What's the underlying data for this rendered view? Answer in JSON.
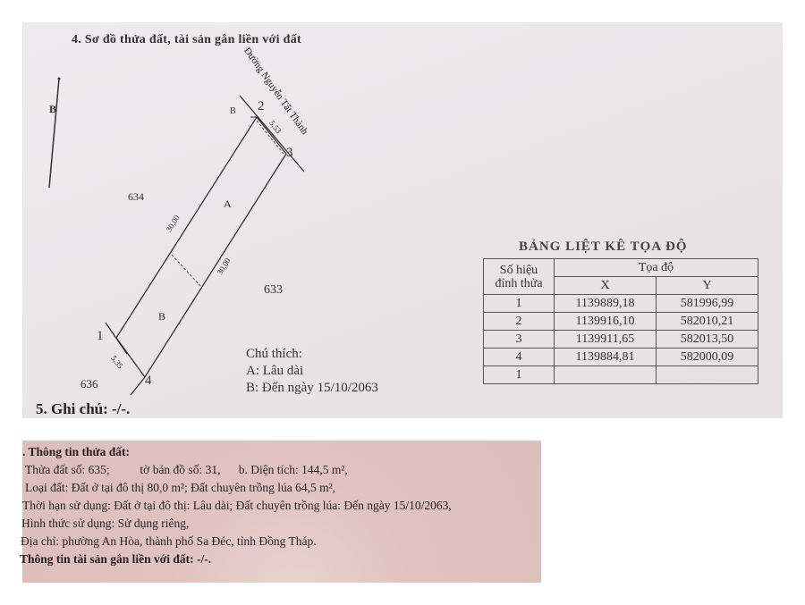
{
  "diagram": {
    "section_title": "4. Sơ đồ thửa đất, tài sản gắn liền với đất",
    "north_label": "B",
    "road_name": "Đường Nguyễn Tất Thành",
    "road_marker": "B",
    "points": [
      "1",
      "2",
      "3",
      "4"
    ],
    "dimensions": {
      "top": "5,53",
      "left": "30,00",
      "right": "30,00",
      "bottom": "5,35"
    },
    "zones": [
      "A",
      "B"
    ],
    "neighbors": {
      "left": "634",
      "right": "633",
      "bottom": "636"
    },
    "legend": {
      "title": "Chú thích:",
      "a": "A: Lâu dài",
      "b": "B: Đến ngày 15/10/2063"
    },
    "note": "5. Ghi chú: -/-."
  },
  "coord_table": {
    "title": "BẢNG LIỆT KÊ TỌA ĐỘ",
    "header_point": "Số hiệu đỉnh thửa",
    "header_coord": "Tọa độ",
    "col_x": "X",
    "col_y": "Y",
    "rows": [
      {
        "p": "1",
        "x": "1139889,18",
        "y": "581996,99"
      },
      {
        "p": "2",
        "x": "1139916,10",
        "y": "582010,21"
      },
      {
        "p": "3",
        "x": "1139911,65",
        "y": "582013,50"
      },
      {
        "p": "4",
        "x": "1139884,81",
        "y": "582000,09"
      },
      {
        "p": "1",
        "x": "",
        "y": ""
      }
    ]
  },
  "info": {
    "heading": ". Thông tin thửa đất:",
    "line1": "Thửa đất số: 635;          tờ bản đồ số: 31,      b. Diện tích: 144,5 m²,",
    "line2": "Loại đất: Đất ở tại đô thị 80,0 m²; Đất chuyên trồng lúa 64,5 m²,",
    "line3": "Thời hạn sử dụng: Đất ở tại đô thị: Lâu dài; Đất chuyên trồng lúa: Đến ngày 15/10/2063,",
    "line4": "Hình thức sử dụng: Sử dụng riêng,",
    "line5": "Địa chỉ: phường An Hòa, thành phố Sa Đéc, tỉnh Đồng Tháp.",
    "line6": "Thông tin tài sản gắn liền với đất: -/-."
  }
}
